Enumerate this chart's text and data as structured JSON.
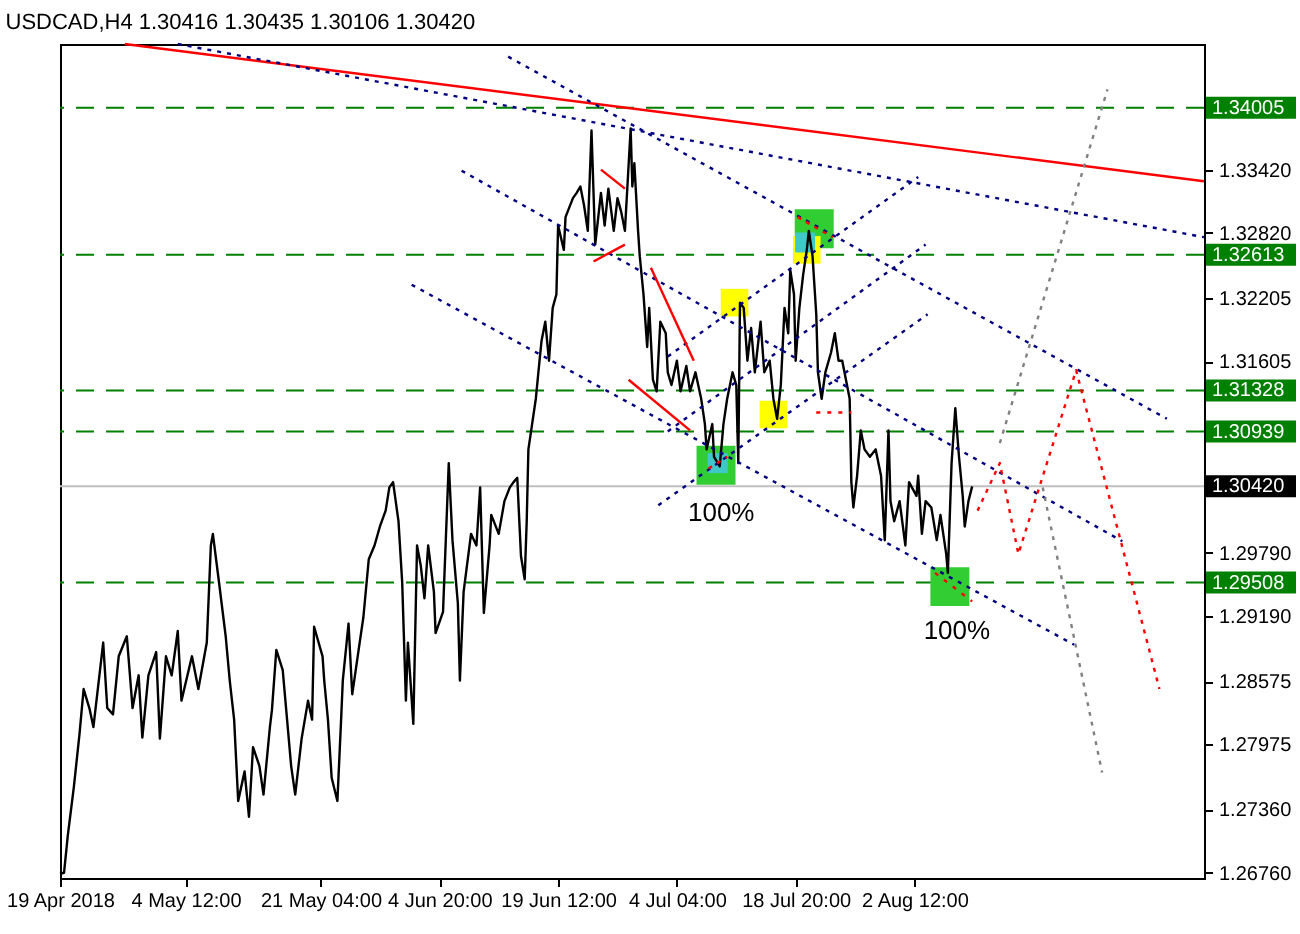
{
  "chart_data": {
    "type": "line",
    "title": "USDCAD,H4 1.30416 1.30435 1.30106 1.30420",
    "xlim": [
      "2018-04-19T00:00",
      "2018-09-07T06:00"
    ],
    "xticks": [
      {
        "value": "2018-04-19T00:00",
        "label": "19 Apr 2018"
      },
      {
        "value": "2018-05-04T12:00",
        "label": "4 May 12:00"
      },
      {
        "value": "2018-05-21T04:00",
        "label": "21 May 04:00"
      },
      {
        "value": "2018-06-04T20:00",
        "label": "4 Jun 20:00"
      },
      {
        "value": "2018-06-19T12:00",
        "label": "19 Jun 12:00"
      },
      {
        "value": "2018-07-04T04:00",
        "label": "4 Jul 04:00"
      },
      {
        "value": "2018-07-18T20:00",
        "label": "18 Jul 20:00"
      },
      {
        "value": "2018-08-02T12:00",
        "label": "2 Aug 12:00"
      }
    ],
    "ylim": [
      1.2671,
      1.3461
    ],
    "yticks": [
      {
        "value": 1.3342,
        "label": "1.33420"
      },
      {
        "value": 1.3282,
        "label": "1.32820"
      },
      1.32205,
      1.31605,
      {
        "value": 1.2979,
        "label": "1.29790"
      },
      {
        "value": 1.2919,
        "label": "1.29190"
      },
      1.28575,
      1.27975,
      {
        "value": 1.2736,
        "label": "1.27360"
      },
      {
        "value": 1.2676,
        "label": "1.26760"
      }
    ],
    "ref_lines": [
      {
        "axis": "y",
        "value": 1.34005,
        "label": "1.34005",
        "color": "#008000",
        "line_style": "dashed"
      },
      {
        "axis": "y",
        "value": 1.32613,
        "label": "1.32613",
        "color": "#008000",
        "line_style": "dashed"
      },
      {
        "axis": "y",
        "value": 1.31328,
        "label": "1.31328",
        "color": "#008000",
        "line_style": "dashed"
      },
      {
        "axis": "y",
        "value": 1.30939,
        "label": "1.30939",
        "color": "#008000",
        "line_style": "dashed"
      },
      {
        "axis": "y",
        "value": 1.3042,
        "label": "1.30420",
        "color": "#c0c0c0",
        "line_style": "solid"
      },
      {
        "axis": "y",
        "value": 1.29508,
        "label": "1.29508",
        "color": "#008000",
        "line_style": "dashed"
      }
    ],
    "series": [
      {
        "type": "scatter",
        "color": "#32cd32",
        "marker": "square",
        "x": [
          "2018-07-09T00:00",
          "2018-07-21T03:00",
          "2018-08-06T21:00"
        ],
        "values": [
          1.3062,
          1.3286,
          1.2947
        ]
      },
      {
        "type": "scatter",
        "color": "#ffff00",
        "marker": "square",
        "x": [
          "2018-07-11T07:00",
          "2018-07-16T02:00",
          "2018-07-20T05:00"
        ],
        "values": [
          1.3216,
          1.311,
          1.3266
        ]
      },
      {
        "type": "scatter",
        "color": "#40c8c8",
        "marker": "square",
        "x": [
          "2018-07-09T05:00",
          "2018-07-20T00:00"
        ],
        "values": [
          1.3064,
          1.3273
        ]
      },
      {
        "color": "#000000",
        "x": [
          "2018-04-19T00:00",
          "2018-04-19T12:00",
          "2018-04-19T23:00",
          "2018-04-20T17:00",
          "2018-04-21T10:00",
          "2018-04-21T22:00",
          "2018-04-22T15:00",
          "2018-04-23T03:00",
          "2018-04-24T08:00",
          "2018-04-24T20:00",
          "2018-04-25T13:00",
          "2018-04-26T06:00",
          "2018-04-27T06:00",
          "2018-04-27T23:00",
          "2018-04-28T17:00",
          "2018-04-29T04:00",
          "2018-04-29T22:00",
          "2018-04-30T21:00",
          "2018-05-01T08:00",
          "2018-05-02T02:00",
          "2018-05-02T19:00",
          "2018-05-03T13:00",
          "2018-05-04T00:00",
          "2018-05-05T07:00",
          "2018-05-06T02:00",
          "2018-05-07T03:00",
          "2018-05-07T15:00",
          "2018-05-07T21:00",
          "2018-05-08T16:00",
          "2018-05-09T11:00",
          "2018-05-09T23:00",
          "2018-05-10T12:00",
          "2018-05-11T00:00",
          "2018-05-11T19:00",
          "2018-05-12T08:00",
          "2018-05-12T20:00",
          "2018-05-13T15:00",
          "2018-05-14T03:00",
          "2018-05-14T22:00",
          "2018-05-15T04:00",
          "2018-05-15T17:00",
          "2018-05-16T12:00",
          "2018-05-17T13:00",
          "2018-05-18T01:00",
          "2018-05-18T20:00",
          "2018-05-19T15:00",
          "2018-05-20T03:00",
          "2018-05-20T09:00",
          "2018-05-21T10:00",
          "2018-05-21T15:00",
          "2018-05-22T02:00",
          "2018-05-22T13:00",
          "2018-05-23T06:00",
          "2018-05-23T17:00",
          "2018-05-23T22:00",
          "2018-05-24T15:00",
          "2018-05-25T02:00",
          "2018-05-26T00:00",
          "2018-05-26T11:00",
          "2018-05-27T03:00",
          "2018-05-27T20:00",
          "2018-05-28T12:00",
          "2018-05-29T05:00",
          "2018-05-29T16:00",
          "2018-05-30T03:00",
          "2018-05-30T19:00",
          "2018-05-31T06:00",
          "2018-05-31T17:00",
          "2018-05-31T23:00",
          "2018-06-01T15:00",
          "2018-06-02T02:00",
          "2018-06-02T13:00",
          "2018-06-03T00:00",
          "2018-06-03T11:00",
          "2018-06-04T04:00",
          "2018-06-04T09:00",
          "2018-06-05T07:00",
          "2018-06-06T00:00",
          "2018-06-06T11:00",
          "2018-06-07T03:00",
          "2018-06-07T09:00",
          "2018-06-07T20:00",
          "2018-06-08T18:00",
          "2018-06-09T10:00",
          "2018-06-09T21:00",
          "2018-06-10T08:00",
          "2018-06-11T01:00",
          "2018-06-11T06:00",
          "2018-06-12T04:00",
          "2018-06-12T21:00",
          "2018-06-13T13:00",
          "2018-06-14T00:00",
          "2018-06-14T11:00",
          "2018-06-14T22:00",
          "2018-06-15T09:00",
          "2018-06-15T15:00",
          "2018-06-15T20:00",
          "2018-06-16T07:00",
          "2018-06-16T18:00",
          "2018-06-17T05:00",
          "2018-06-17T11:00",
          "2018-06-17T22:00",
          "2018-06-18T09:00",
          "2018-06-18T20:00",
          "2018-06-19T07:00",
          "2018-06-19T12:00",
          "2018-06-20T05:00",
          "2018-06-20T10:00",
          "2018-06-21T08:00",
          "2018-06-21T19:00",
          "2018-06-22T06:00",
          "2018-06-22T17:00",
          "2018-06-23T04:00",
          "2018-06-23T15:00",
          "2018-06-24T02:00",
          "2018-06-24T19:00",
          "2018-06-25T06:00",
          "2018-06-25T17:00",
          "2018-06-26T09:00",
          "2018-06-26T20:00",
          "2018-06-27T07:00",
          "2018-06-27T18:00",
          "2018-06-28T11:00",
          "2018-06-28T16:00",
          "2018-06-28T22:00",
          "2018-06-29T09:00",
          "2018-06-29T14:00",
          "2018-06-30T01:00",
          "2018-06-30T12:00",
          "2018-06-30T18:00",
          "2018-07-01T05:00",
          "2018-07-01T16:00",
          "2018-07-02T03:00",
          "2018-07-02T19:00",
          "2018-07-03T01:00",
          "2018-07-03T12:00",
          "2018-07-04T04:00",
          "2018-07-04T15:00",
          "2018-07-05T08:00",
          "2018-07-05T19:00",
          "2018-07-06T11:00",
          "2018-07-07T04:00",
          "2018-07-07T15:00",
          "2018-07-07T20:00",
          "2018-07-08T13:00",
          "2018-07-08T18:00",
          "2018-07-09T11:00",
          "2018-07-09T22:00",
          "2018-07-10T09:00",
          "2018-07-11T01:00",
          "2018-07-11T12:00",
          "2018-07-11T18:00",
          "2018-07-11T23:00",
          "2018-07-12T10:00",
          "2018-07-12T21:00",
          "2018-07-13T08:00",
          "2018-07-13T19:00",
          "2018-07-14T12:00",
          "2018-07-14T23:00",
          "2018-07-15T15:00",
          "2018-07-16T02:00",
          "2018-07-16T13:00",
          "2018-07-17T00:00",
          "2018-07-17T11:00",
          "2018-07-17T22:00",
          "2018-07-18T04:00",
          "2018-07-18T15:00",
          "2018-07-18T20:00",
          "2018-07-19T07:00",
          "2018-07-19T18:00",
          "2018-07-20T05:00",
          "2018-07-20T11:00",
          "2018-07-20T22:00",
          "2018-07-21T09:00",
          "2018-07-21T14:00",
          "2018-07-22T01:00",
          "2018-07-22T12:00",
          "2018-07-23T05:00",
          "2018-07-23T16:00",
          "2018-07-24T03:00",
          "2018-07-24T14:00",
          "2018-07-25T01:00",
          "2018-07-25T12:00",
          "2018-07-25T17:00",
          "2018-07-25T23:00",
          "2018-07-26T10:00",
          "2018-07-26T21:00",
          "2018-07-27T08:00",
          "2018-07-28T00:00",
          "2018-07-28T17:00",
          "2018-07-29T09:00",
          "2018-07-29T20:00",
          "2018-07-30T07:00",
          "2018-07-30T13:00",
          "2018-07-31T00:00",
          "2018-07-31T16:00",
          "2018-08-01T09:00",
          "2018-08-01T20:00",
          "2018-08-02T18:00",
          "2018-08-02T23:00",
          "2018-08-03T10:00",
          "2018-08-03T21:00",
          "2018-08-04T14:00",
          "2018-08-05T06:00",
          "2018-08-05T17:00",
          "2018-08-06T10:00",
          "2018-08-06T15:00",
          "2018-08-07T02:00",
          "2018-08-07T13:00",
          "2018-08-08T00:00",
          "2018-08-08T11:00",
          "2018-08-08T17:00",
          "2018-08-09T04:00",
          "2018-08-09T15:00"
        ],
        "values": [
          1.2675,
          1.2676,
          1.2711,
          1.2757,
          1.2808,
          1.285,
          1.2832,
          1.2814,
          1.2894,
          1.2832,
          1.2826,
          1.2881,
          1.29,
          1.2832,
          1.2863,
          1.2804,
          1.2863,
          1.2885,
          1.2803,
          1.2881,
          1.2863,
          1.2905,
          1.2839,
          1.2881,
          1.285,
          1.2894,
          1.2986,
          1.2997,
          1.2949,
          1.29,
          1.2858,
          1.2821,
          1.2744,
          1.2772,
          1.2729,
          1.2795,
          1.2777,
          1.275,
          1.2814,
          1.283,
          1.2887,
          1.2868,
          1.2777,
          1.275,
          1.2803,
          1.2839,
          1.2821,
          1.2909,
          1.2881,
          1.2858,
          1.2821,
          1.2766,
          1.2744,
          1.2821,
          1.2858,
          1.2912,
          1.2845,
          1.2894,
          1.2918,
          1.2973,
          1.2986,
          1.3004,
          1.3019,
          1.3041,
          1.3046,
          1.3009,
          1.2951,
          1.2839,
          1.2894,
          1.2817,
          1.2986,
          1.2967,
          1.2936,
          1.2986,
          1.2942,
          1.2903,
          1.2923,
          1.3064,
          1.2991,
          1.2931,
          1.2858,
          1.2942,
          1.2997,
          1.2986,
          1.3041,
          1.2922,
          1.2986,
          1.3015,
          1.2997,
          1.3028,
          1.3041,
          1.3046,
          1.305,
          1.2976,
          1.2954,
          1.3009,
          1.3077,
          1.3101,
          1.3125,
          1.3161,
          1.318,
          1.3198,
          1.3161,
          1.3211,
          1.3224,
          1.3289,
          1.3266,
          1.3297,
          1.3315,
          1.332,
          1.3326,
          1.3308,
          1.3284,
          1.3379,
          1.3271,
          1.332,
          1.3289,
          1.3324,
          1.3284,
          1.3315,
          1.3302,
          1.3284,
          1.3381,
          1.3326,
          1.3348,
          1.3284,
          1.326,
          1.3224,
          1.3174,
          1.3211,
          1.3143,
          1.3132,
          1.3198,
          1.3187,
          1.315,
          1.3138,
          1.3161,
          1.3132,
          1.3156,
          1.3132,
          1.315,
          1.3125,
          1.3101,
          1.3077,
          1.3101,
          1.307,
          1.3061,
          1.3101,
          1.3125,
          1.315,
          1.3138,
          1.3064,
          1.3216,
          1.3211,
          1.3161,
          1.3192,
          1.315,
          1.3198,
          1.315,
          1.3161,
          1.3125,
          1.3106,
          1.3138,
          1.3211,
          1.3187,
          1.3247,
          1.3224,
          1.3161,
          1.3211,
          1.3242,
          1.3266,
          1.3284,
          1.326,
          1.3205,
          1.315,
          1.3125,
          1.315,
          1.3169,
          1.3187,
          1.3161,
          1.3161,
          1.3143,
          1.3125,
          1.3046,
          1.3022,
          1.3052,
          1.3095,
          1.3077,
          1.307,
          1.3077,
          1.3052,
          1.2991,
          1.3095,
          1.3028,
          1.3009,
          1.3028,
          1.2986,
          1.3046,
          1.3033,
          1.3052,
          1.2997,
          1.3028,
          1.3022,
          1.2991,
          1.3015,
          1.2978,
          1.296,
          1.3064,
          1.3116,
          1.307,
          1.3033,
          1.3004,
          1.3028,
          1.3042
        ]
      },
      {
        "color": "#ff0000",
        "x": [
          "2018-04-27T00:00",
          "2018-09-07T06:00"
        ],
        "values": [
          1.3461,
          1.3331
        ]
      },
      {
        "color": "#000080",
        "line_style": "dotted",
        "x": [
          "2018-05-03T13:00",
          "2018-09-07T06:00"
        ],
        "values": [
          1.3461,
          1.3278
        ]
      },
      {
        "color": "#000080",
        "line_style": "dotted",
        "x": [
          "2018-06-13T08:00",
          "2018-09-02T16:00"
        ],
        "values": [
          1.3449,
          1.3106
        ]
      },
      {
        "color": "#000080",
        "line_style": "dotted",
        "x": [
          "2018-06-07T14:00",
          "2018-08-28T04:00"
        ],
        "values": [
          1.3341,
          1.299
        ]
      },
      {
        "color": "#000080",
        "line_style": "dotted",
        "x": [
          "2018-06-01T10:00",
          "2018-08-22T05:00"
        ],
        "values": [
          1.3233,
          1.2892
        ]
      },
      {
        "color": "#000080",
        "line_style": "dotted",
        "x": [
          "2018-07-03T01:00",
          "2018-08-02T23:00"
        ],
        "values": [
          1.3165,
          1.3335
        ]
      },
      {
        "color": "#000080",
        "line_style": "dotted",
        "x": [
          "2018-07-03T01:00",
          "2018-08-03T21:00"
        ],
        "values": [
          1.3094,
          1.3271
        ]
      },
      {
        "color": "#000080",
        "line_style": "dotted",
        "x": [
          "2018-07-01T21:00",
          "2018-08-04T03:00"
        ],
        "values": [
          1.3024,
          1.3205
        ]
      },
      {
        "color": "#ff0000",
        "x": [
          "2018-06-24T19:00",
          "2018-06-27T18:00"
        ],
        "values": [
          1.3342,
          1.3324
        ]
      },
      {
        "color": "#ff0000",
        "x": [
          "2018-06-23T21:00",
          "2018-06-27T18:00"
        ],
        "values": [
          1.3255,
          1.3271
        ]
      },
      {
        "color": "#ff0000",
        "x": [
          "2018-06-30T23:00",
          "2018-07-06T06:00"
        ],
        "values": [
          1.3249,
          1.3161
        ]
      },
      {
        "color": "#ff0000",
        "x": [
          "2018-06-28T05:00",
          "2018-07-05T19:00"
        ],
        "values": [
          1.3143,
          1.3095
        ]
      },
      {
        "color": "#808080",
        "line_style": "dotted",
        "x": [
          "2018-08-13T01:00",
          "2018-08-26T08:00"
        ],
        "values": [
          1.3083,
          1.3418
        ]
      },
      {
        "color": "#808080",
        "line_style": "dotted",
        "x": [
          "2018-08-18T08:00",
          "2018-08-25T16:00"
        ],
        "values": [
          1.3041,
          1.2771
        ]
      },
      {
        "color": "#ff0000",
        "line_style": "dotted",
        "x": [
          "2018-08-10T07:00",
          "2018-08-13T01:00",
          "2018-08-15T08:00",
          "2018-08-22T11:00",
          "2018-09-01T18:00"
        ],
        "values": [
          1.3019,
          1.3064,
          1.2978,
          1.3152,
          1.285
        ]
      },
      {
        "color": "#ff0000",
        "line_style": "dotted",
        "x": [
          "2018-07-21T09:00",
          "2018-07-25T17:00"
        ],
        "values": [
          1.3112,
          1.3112
        ]
      },
      {
        "color": "#ff0000",
        "line_style": "dotted",
        "x": [
          "2018-07-19T02:00",
          "2018-07-23T10:00"
        ],
        "values": [
          1.3297,
          1.3278
        ]
      },
      {
        "color": "#ff0000",
        "line_style": "dotted",
        "x": [
          "2018-08-05T01:00",
          "2018-08-09T15:00"
        ],
        "values": [
          1.296,
          1.2933
        ]
      },
      {
        "color": "#ff0000",
        "line_style": "dotted",
        "x": [
          "2018-07-08T02:00",
          "2018-07-10T09:00"
        ],
        "values": [
          1.3059,
          1.307
        ]
      }
    ],
    "annotations": [
      "100%",
      "100%"
    ]
  }
}
